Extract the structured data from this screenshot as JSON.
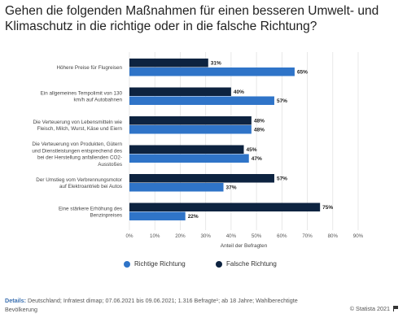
{
  "title": "Gehen die folgenden Maßnahmen für einen besseren Umwelt- und Klimaschutz in die richtige oder in die falsche Richtung?",
  "chart_data": {
    "type": "bar",
    "orientation": "horizontal",
    "categories": [
      [
        "Höhere Preise für Flugreisen"
      ],
      [
        "Ein allgemeines Tempolimit von 130",
        "km/h auf Autobahnen"
      ],
      [
        "Die Verteuerung von Lebensmitteln wie",
        "Fleisch, Milch, Wurst, Käse und Eiern"
      ],
      [
        "Die Verteuerung von Produkten, Gütern",
        "und Dienstleistungen entsprechend des",
        "bei der Herstellung anfallenden CO2-",
        "Ausstoßes"
      ],
      [
        "Der Umstieg vom Verbrennungsmotor",
        "auf Elektroantrieb bei Autos"
      ],
      [
        "Eine stärkere Erhöhung des",
        "Benzinpreises"
      ]
    ],
    "series": [
      {
        "name": "Falsche Richtung",
        "color": "#0d2340",
        "values": [
          31,
          40,
          48,
          45,
          57,
          75
        ]
      },
      {
        "name": "Richtige Richtung",
        "color": "#2f74c8",
        "values": [
          65,
          57,
          48,
          47,
          37,
          22
        ]
      }
    ],
    "value_suffix": "%",
    "xlabel": "Anteil der Befragten",
    "xlim": [
      0,
      90
    ],
    "xticks": [
      0,
      10,
      20,
      30,
      40,
      50,
      60,
      70,
      80,
      90
    ],
    "xtick_labels": [
      "0%",
      "10%",
      "20%",
      "30%",
      "40%",
      "50%",
      "60%",
      "70%",
      "80%",
      "90%"
    ],
    "grid": true,
    "legend_position": "bottom-center",
    "legend_order": [
      "Richtige Richtung",
      "Falsche Richtung"
    ]
  },
  "footer": {
    "details_label": "Details:",
    "details_text": "Deutschland; Infratest dimap; 07.06.2021 bis 09.06.2021; 1.316 Befragte¹; ab 18 Jahre; Wahlberechtigte Bevölkerung",
    "copyright": "© Statista 2021",
    "flag_icon": "flag-icon"
  }
}
